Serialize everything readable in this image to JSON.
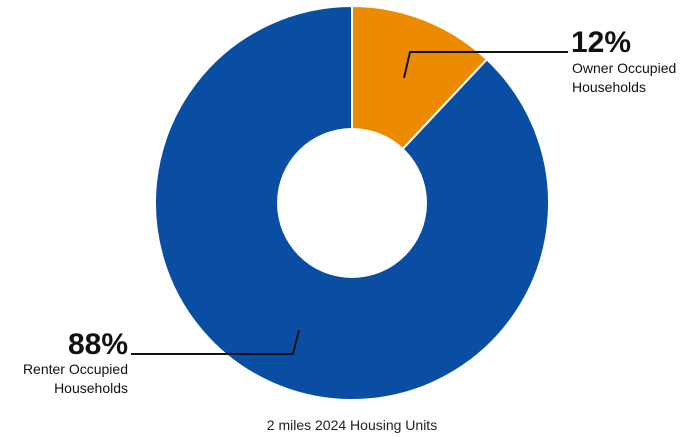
{
  "chart_data": {
    "type": "pie",
    "subtype": "donut",
    "caption": "2 miles 2024 Housing Units",
    "slices": [
      {
        "value": 12,
        "percent_label": "12%",
        "label_line1": "Owner Occupied",
        "label_line2": "Households",
        "color": "#ED8B00"
      },
      {
        "value": 88,
        "percent_label": "88%",
        "label_line1": "Renter Occupied",
        "label_line2": "Households",
        "color": "#0A4EA3"
      }
    ],
    "start": "top",
    "direction": "clockwise",
    "legend": "none"
  }
}
